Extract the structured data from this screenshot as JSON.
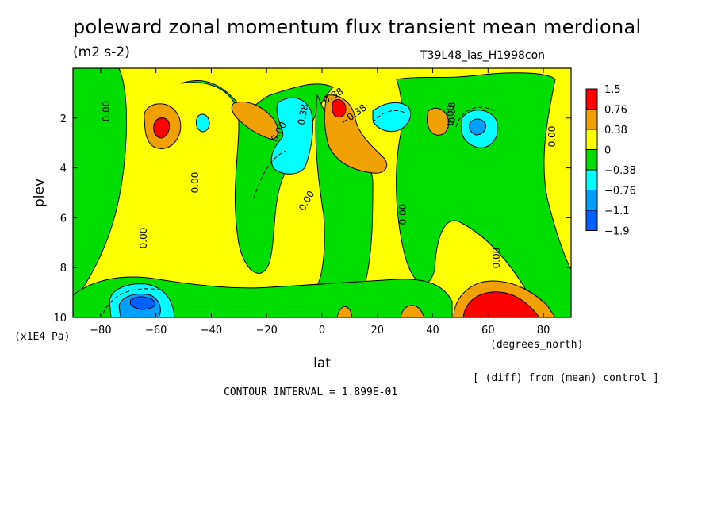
{
  "title": "poleward zonal momentum flux transient mean merdional",
  "units": "(m2 s-2)",
  "experiment": "T39L48_ias_H1998con",
  "contour_interval_label": "CONTOUR INTERVAL = 1.899E-01",
  "diff_note": "[ (diff) from (mean) control ]",
  "chart_data": {
    "type": "heatmap",
    "xlabel": "lat",
    "x_units": "(degrees_north)",
    "ylabel": "plev",
    "y_units": "(x1E4 Pa)",
    "xlim": [
      -90,
      90
    ],
    "ylim": [
      10,
      0
    ],
    "x_ticks": [
      -80,
      -60,
      -40,
      -20,
      0,
      20,
      40,
      60,
      80
    ],
    "y_ticks": [
      2,
      4,
      6,
      8,
      10
    ],
    "colorbar": {
      "levels": [
        "1.5",
        "0.76",
        "0.38",
        "0",
        "-0.38",
        "-0.76",
        "-1.1",
        "-1.9"
      ],
      "colors": [
        "#ff0000",
        "#f0a000",
        "#ffff00",
        "#00dd00",
        "#00ffff",
        "#00a0ff",
        "#0060ff"
      ]
    },
    "contour_labels": [
      "0.00",
      "0.00",
      "0.00",
      "0.00",
      "0.00",
      "0.00",
      "0.00",
      "0.00",
      "0.00",
      "0.38",
      "-0.38",
      "0.38",
      "0.38"
    ],
    "features": [
      {
        "lat": -58,
        "plev": 2.4,
        "value": 1.0
      },
      {
        "lat": -42,
        "plev": 2.3,
        "value": -0.5
      },
      {
        "lat": -25,
        "plev": 1.8,
        "value": 0.6
      },
      {
        "lat": -8,
        "plev": 3.0,
        "value": -0.6
      },
      {
        "lat": 6,
        "plev": 1.5,
        "value": 1.2
      },
      {
        "lat": 13,
        "plev": 3.0,
        "value": 0.6
      },
      {
        "lat": 25,
        "plev": 2.3,
        "value": -0.6
      },
      {
        "lat": 40,
        "plev": 2.2,
        "value": 0.6
      },
      {
        "lat": 55,
        "plev": 2.4,
        "value": -0.8
      },
      {
        "lat": -62,
        "plev": 9.5,
        "value": -1.0
      },
      {
        "lat": 62,
        "plev": 9.5,
        "value": 1.6
      }
    ]
  }
}
